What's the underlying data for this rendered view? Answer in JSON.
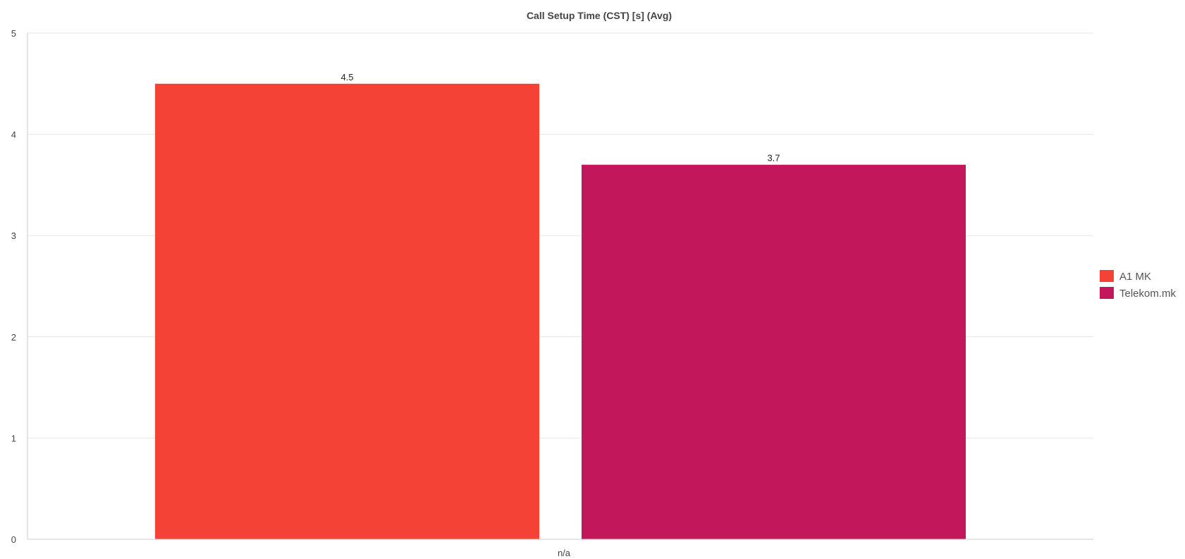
{
  "chart_data": {
    "type": "bar",
    "title": "Call Setup Time (CST) [s] (Avg)",
    "categories": [
      "n/a"
    ],
    "series": [
      {
        "name": "A1 MK",
        "values": [
          4.5
        ],
        "color": "#f44336",
        "label": "4.5"
      },
      {
        "name": "Telekom.mk",
        "values": [
          3.7
        ],
        "color": "#c2185b",
        "label": "3.7"
      }
    ],
    "ylim": [
      0,
      5
    ],
    "yticks": [
      0,
      1,
      2,
      3,
      4,
      5
    ],
    "xlabel": "",
    "ylabel": "",
    "grid": true,
    "legend": "right"
  }
}
